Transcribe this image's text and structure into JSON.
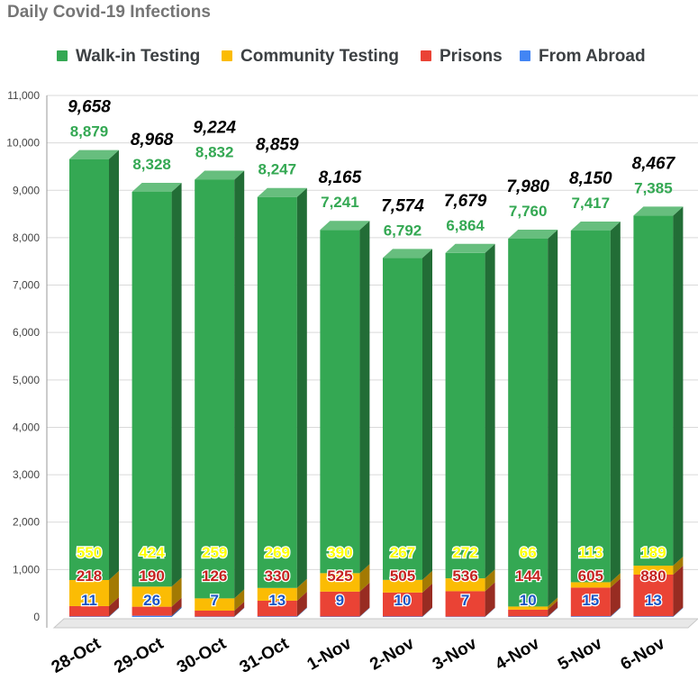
{
  "chart_data": {
    "type": "bar",
    "stacked": true,
    "style": "3d",
    "title": "Daily Covid-19 Infections",
    "xlabel": "",
    "ylabel": "",
    "ylim": [
      0,
      11000
    ],
    "yticks": [
      0,
      1000,
      2000,
      3000,
      4000,
      5000,
      6000,
      7000,
      8000,
      9000,
      10000,
      11000
    ],
    "ytick_labels": [
      "0",
      "1,000",
      "2,000",
      "3,000",
      "4,000",
      "5,000",
      "6,000",
      "7,000",
      "8,000",
      "9,000",
      "10,000",
      "11,000"
    ],
    "grid": true,
    "legend_position": "top",
    "categories": [
      "28-Oct",
      "29-Oct",
      "30-Oct",
      "31-Oct",
      "1-Nov",
      "2-Nov",
      "3-Nov",
      "4-Nov",
      "5-Nov",
      "6-Nov"
    ],
    "series": [
      {
        "name": "Walk-in Testing",
        "color": "#34a853",
        "label_color": "#34a853",
        "values": [
          8879,
          8328,
          8832,
          8247,
          7241,
          6792,
          6864,
          7760,
          7417,
          7385
        ],
        "labels": [
          "8,879",
          "8,328",
          "8,832",
          "8,247",
          "7,241",
          "6,792",
          "6,864",
          "7,760",
          "7,417",
          "7,385"
        ]
      },
      {
        "name": "Community Testing",
        "color": "#fbbc04",
        "label_color": "#ffff00",
        "values": [
          550,
          424,
          259,
          269,
          390,
          267,
          272,
          66,
          113,
          189
        ],
        "labels": [
          "550",
          "424",
          "259",
          "269",
          "390",
          "267",
          "272",
          "66",
          "113",
          "189"
        ]
      },
      {
        "name": "Prisons",
        "color": "#ea4335",
        "label_color": "#c5221f",
        "values": [
          218,
          190,
          126,
          330,
          525,
          505,
          536,
          144,
          605,
          880
        ],
        "labels": [
          "218",
          "190",
          "126",
          "330",
          "525",
          "505",
          "536",
          "144",
          "605",
          "880"
        ]
      },
      {
        "name": "From Abroad",
        "color": "#4285f4",
        "label_color": "#1a56c4",
        "values": [
          11,
          26,
          7,
          13,
          9,
          10,
          7,
          10,
          15,
          13
        ],
        "labels": [
          "11",
          "26",
          "7",
          "13",
          "9",
          "10",
          "7",
          "10",
          "15",
          "13"
        ]
      }
    ],
    "totals": [
      9658,
      8968,
      9224,
      8859,
      8165,
      7574,
      7679,
      7980,
      8150,
      8467
    ],
    "total_labels": [
      "9,658",
      "8,968",
      "9,224",
      "8,859",
      "8,165",
      "7,574",
      "7,679",
      "7,980",
      "8,150",
      "8,467"
    ]
  }
}
